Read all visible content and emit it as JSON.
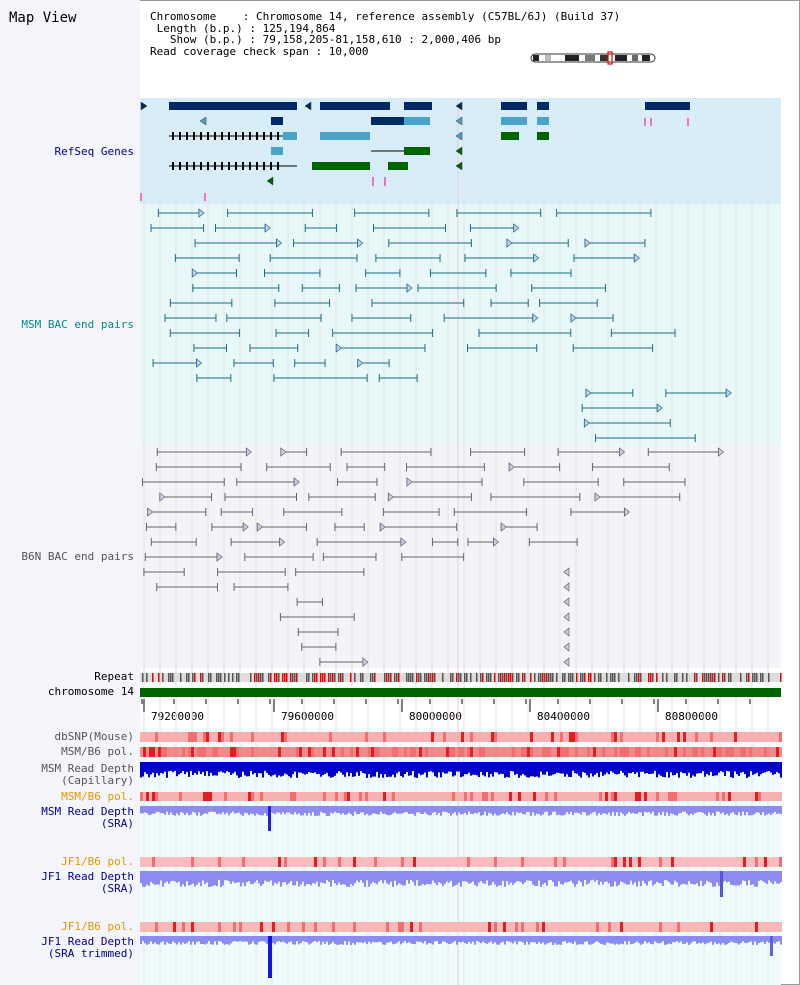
{
  "view_title": "Map View",
  "info": {
    "chromosome": "Chromosome    : Chromosome 14, reference assembly (C57BL/6J) (Build 37)",
    "length": " Length (b.p.) : 125,194,864",
    "show": "   Show (b.p.) : 79,158,205-81,158,610 : 2,000,406 bp",
    "coverage": "Read coverage check span : 10,000"
  },
  "tracks": {
    "refseq": "RefSeq Genes",
    "msm_bac": "MSM BAC end pairs",
    "b6n_bac": "B6N BAC end pairs",
    "repeat": "Repeat",
    "chromosome": "chromosome 14",
    "dbsnp": "dbSNP(Mouse)",
    "msm_pol1": "MSM/B6 pol.",
    "msm_depth_cap_1": "MSM Read Depth",
    "msm_depth_cap_2": "(Capillary)",
    "msm_pol2": "MSM/B6 pol.",
    "msm_depth_sra_1": "MSM Read Depth",
    "msm_depth_sra_2": "(SRA)",
    "jf1_pol1": "JF1/B6 pol.",
    "jf1_depth_1": "JF1 Read Depth",
    "jf1_depth_2": "(SRA)",
    "jf1_pol2": "JF1/B6 pol.",
    "jf1_trim_1": "JF1 Read Depth",
    "jf1_trim_2": "(SRA trimmed)"
  },
  "axis": {
    "ticks": [
      "79200000",
      "79600000",
      "80000000",
      "80400000",
      "80800000"
    ]
  },
  "colors": {
    "refseq_label": "#00008b",
    "msm_label": "#008b8b",
    "b6n_label": "#555555",
    "pol_orange": "#e69500",
    "depth_blue": "#0000cc",
    "gene_dark": "#002a66",
    "gene_light": "#4aa3c8",
    "gene_green": "#006400",
    "chrom_green": "#006400"
  }
}
